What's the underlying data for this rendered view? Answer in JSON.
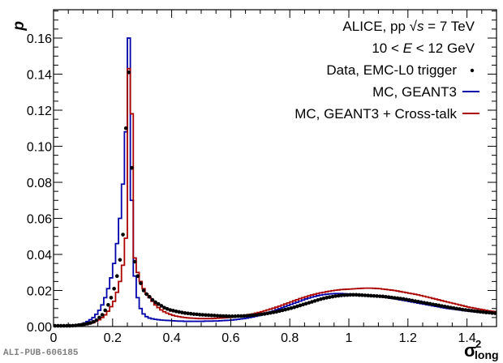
{
  "chart_data": {
    "type": "line",
    "title": "",
    "xlabel": "σ²long",
    "xlabel_main": "σ",
    "xlabel_sup": "2",
    "xlabel_sub": "long",
    "ylabel": "p",
    "xlim": [
      0,
      1.5
    ],
    "ylim": [
      0,
      0.175
    ],
    "x_ticks": [
      0,
      0.2,
      0.4,
      0.6,
      0.8,
      1,
      1.2,
      1.4
    ],
    "x_tick_labels": [
      "0",
      "0.2",
      "0.4",
      "0.6",
      "0.8",
      "1",
      "1.2",
      "1.4"
    ],
    "y_ticks": [
      0,
      0.02,
      0.04,
      0.06,
      0.08,
      0.1,
      0.12,
      0.14,
      0.16
    ],
    "y_tick_labels": [
      "0.00",
      "0.02",
      "0.04",
      "0.06",
      "0.08",
      "0.10",
      "0.12",
      "0.14",
      "0.16"
    ],
    "grid": false,
    "legend_position": "top-right",
    "annotations": [
      "ALICE, pp √s = 7 TeV",
      "10 < E < 12 GeV"
    ],
    "legend": [
      {
        "label": "Data, EMC-L0 trigger",
        "style": "marker",
        "color": "#000000"
      },
      {
        "label": "MC, GEANT3",
        "style": "line",
        "color": "#0000aa"
      },
      {
        "label": "MC, GEANT3 + Cross-talk",
        "style": "line",
        "color": "#aa0000"
      }
    ],
    "bin_width": 0.01,
    "series": [
      {
        "name": "Data, EMC-L0 trigger",
        "color": "#000000",
        "x_centers_from": 0.005,
        "values": [
          0.0004,
          0.0004,
          0.0004,
          0.0004,
          0.0004,
          0.0004,
          0.0005,
          0.0006,
          0.0008,
          0.001,
          0.0013,
          0.0016,
          0.002,
          0.0026,
          0.0035,
          0.005,
          0.0065,
          0.009,
          0.012,
          0.016,
          0.021,
          0.028,
          0.037,
          0.051,
          0.11,
          0.141,
          0.088,
          0.036,
          0.028,
          0.024,
          0.02,
          0.018,
          0.0165,
          0.0148,
          0.0135,
          0.0125,
          0.0115,
          0.0105,
          0.0098,
          0.0092,
          0.0088,
          0.0084,
          0.0081,
          0.0078,
          0.0075,
          0.0073,
          0.0071,
          0.0069,
          0.0068,
          0.0066,
          0.0065,
          0.0064,
          0.0063,
          0.0062,
          0.0061,
          0.006,
          0.0059,
          0.0058,
          0.0058,
          0.0057,
          0.0057,
          0.0057,
          0.0058,
          0.0058,
          0.0059,
          0.006,
          0.0061,
          0.0063,
          0.0064,
          0.0066,
          0.0068,
          0.007,
          0.0073,
          0.0076,
          0.0079,
          0.0082,
          0.0086,
          0.009,
          0.0094,
          0.0098,
          0.0102,
          0.0107,
          0.0112,
          0.0117,
          0.0122,
          0.0127,
          0.0132,
          0.0137,
          0.0142,
          0.0147,
          0.0152,
          0.0156,
          0.016,
          0.0163,
          0.0166,
          0.0169,
          0.0171,
          0.0173,
          0.0174,
          0.0175,
          0.0176,
          0.0176,
          0.0176,
          0.0175,
          0.0174,
          0.0173,
          0.0172,
          0.0171,
          0.017,
          0.0169,
          0.0168,
          0.0167,
          0.0165,
          0.0163,
          0.0161,
          0.0159,
          0.0157,
          0.0155,
          0.0153,
          0.015,
          0.0147,
          0.0144,
          0.0141,
          0.0138,
          0.0135,
          0.0132,
          0.0129,
          0.0126,
          0.0123,
          0.012,
          0.0117,
          0.0114,
          0.0111,
          0.0108,
          0.0105,
          0.0102,
          0.0099,
          0.0097,
          0.0094,
          0.0092,
          0.009,
          0.0088,
          0.0086,
          0.0084,
          0.0082,
          0.008,
          0.0078,
          0.0077,
          0.0075,
          0.0074
        ]
      },
      {
        "name": "MC, GEANT3",
        "color": "#0000aa",
        "x_centers_from": 0.005,
        "values": [
          0.0002,
          0.0002,
          0.0002,
          0.0003,
          0.0003,
          0.0004,
          0.0005,
          0.0007,
          0.001,
          0.0014,
          0.002,
          0.0028,
          0.0038,
          0.005,
          0.0068,
          0.009,
          0.012,
          0.016,
          0.021,
          0.027,
          0.035,
          0.046,
          0.06,
          0.079,
          0.108,
          0.16,
          0.07,
          0.028,
          0.016,
          0.01,
          0.007,
          0.0055,
          0.0047,
          0.0043,
          0.004,
          0.0038,
          0.0036,
          0.0035,
          0.0034,
          0.0033,
          0.0032,
          0.0031,
          0.003,
          0.003,
          0.0029,
          0.0029,
          0.0029,
          0.0029,
          0.0029,
          0.0029,
          0.0029,
          0.003,
          0.003,
          0.003,
          0.0031,
          0.0031,
          0.0032,
          0.0033,
          0.0034,
          0.0035,
          0.0036,
          0.0038,
          0.004,
          0.0042,
          0.0044,
          0.0047,
          0.005,
          0.0053,
          0.0057,
          0.0061,
          0.0066,
          0.0071,
          0.0076,
          0.0081,
          0.0087,
          0.0093,
          0.0099,
          0.0105,
          0.0111,
          0.0117,
          0.0123,
          0.0129,
          0.0135,
          0.0141,
          0.0147,
          0.0153,
          0.0158,
          0.0163,
          0.0167,
          0.0171,
          0.0174,
          0.0177,
          0.0179,
          0.0181,
          0.0182,
          0.0183,
          0.0183,
          0.0183,
          0.0182,
          0.0181,
          0.018,
          0.0179,
          0.0178,
          0.0177,
          0.0176,
          0.0175,
          0.0174,
          0.0172,
          0.017,
          0.0168,
          0.0166,
          0.0164,
          0.0162,
          0.016,
          0.0157,
          0.0154,
          0.0151,
          0.0148,
          0.0145,
          0.0142,
          0.0139,
          0.0136,
          0.0133,
          0.013,
          0.0127,
          0.0124,
          0.0121,
          0.0118,
          0.0115,
          0.0112,
          0.0109,
          0.0106,
          0.0103,
          0.01,
          0.0098,
          0.0096,
          0.0094,
          0.0092,
          0.009,
          0.0088,
          0.0086,
          0.0084,
          0.0082,
          0.008,
          0.0079,
          0.0077,
          0.0076,
          0.0075,
          0.0074
        ]
      },
      {
        "name": "MC, GEANT3 + Cross-talk",
        "color": "#aa0000",
        "x_centers_from": 0.005,
        "values": [
          0.0002,
          0.0002,
          0.0002,
          0.0002,
          0.0003,
          0.0003,
          0.0004,
          0.0005,
          0.0006,
          0.0008,
          0.001,
          0.0013,
          0.0017,
          0.0022,
          0.0029,
          0.0038,
          0.005,
          0.0065,
          0.0085,
          0.011,
          0.014,
          0.019,
          0.025,
          0.034,
          0.049,
          0.143,
          0.118,
          0.038,
          0.03,
          0.025,
          0.021,
          0.018,
          0.016,
          0.014,
          0.012,
          0.0105,
          0.0092,
          0.0082,
          0.0074,
          0.0068,
          0.0062,
          0.0058,
          0.0055,
          0.0052,
          0.005,
          0.0048,
          0.0047,
          0.0046,
          0.0045,
          0.0044,
          0.0044,
          0.0044,
          0.0044,
          0.0044,
          0.0045,
          0.0046,
          0.0047,
          0.0048,
          0.0049,
          0.005,
          0.0052,
          0.0054,
          0.0056,
          0.0058,
          0.0061,
          0.0064,
          0.0067,
          0.007,
          0.0074,
          0.0078,
          0.0082,
          0.0087,
          0.0092,
          0.0097,
          0.0102,
          0.0107,
          0.0113,
          0.0119,
          0.0125,
          0.0131,
          0.0137,
          0.0143,
          0.0149,
          0.0155,
          0.016,
          0.0165,
          0.017,
          0.0175,
          0.0179,
          0.0183,
          0.0187,
          0.019,
          0.0193,
          0.0196,
          0.0199,
          0.0201,
          0.0203,
          0.0205,
          0.0206,
          0.0207,
          0.0208,
          0.0209,
          0.021,
          0.0211,
          0.0212,
          0.0213,
          0.0213,
          0.0213,
          0.0212,
          0.0211,
          0.021,
          0.0208,
          0.0206,
          0.0204,
          0.0202,
          0.02,
          0.0197,
          0.0194,
          0.0191,
          0.0188,
          0.0185,
          0.0182,
          0.0179,
          0.0176,
          0.0172,
          0.0168,
          0.0164,
          0.016,
          0.0156,
          0.0152,
          0.0148,
          0.0144,
          0.014,
          0.0136,
          0.0132,
          0.0128,
          0.0124,
          0.012,
          0.0116,
          0.0112,
          0.0108,
          0.0105,
          0.0102,
          0.0099,
          0.0096,
          0.0093,
          0.009,
          0.0087,
          0.0085,
          0.0083
        ]
      }
    ]
  },
  "footer": {
    "pub_id": "ALI-PUB-606185"
  }
}
